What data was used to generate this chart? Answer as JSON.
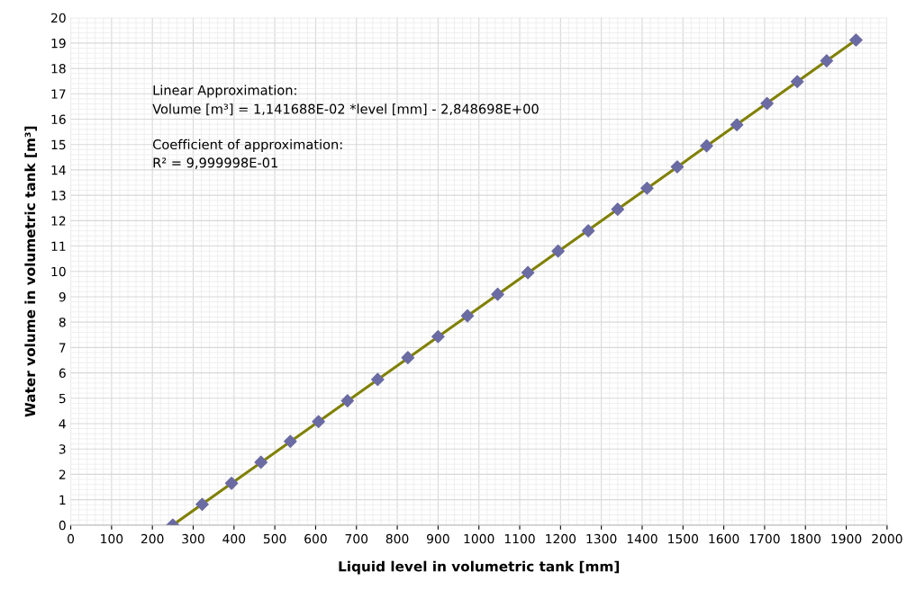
{
  "chart_data": {
    "type": "scatter",
    "xlabel": "Liquid level in volumetric tank [mm]",
    "ylabel": "Water volume in volumetric tank [m³]",
    "annotations": [
      "Linear Approximation:",
      "Volume [m³] = 1,141688E-02 *level [mm] - 2,848698E+00",
      "Coefficient of approximation:",
      "R² = 9,999998E-01"
    ],
    "series": [
      {
        "type": "line",
        "color": "#808000",
        "marker": "none",
        "x": [
          250,
          1924
        ],
        "values": [
          0,
          19.12
        ]
      },
      {
        "color": "#6b6ba3",
        "marker": "diamond",
        "x": [
          250,
          322,
          394,
          466,
          538,
          607,
          678,
          752,
          826,
          900,
          972,
          1046,
          1120,
          1194,
          1268,
          1340,
          1412,
          1486,
          1558,
          1632,
          1706,
          1780,
          1852,
          1924
        ],
        "values": [
          0,
          0.82,
          1.65,
          2.48,
          3.3,
          4.08,
          4.9,
          5.74,
          6.6,
          7.43,
          8.25,
          9.1,
          9.95,
          10.8,
          11.6,
          12.45,
          13.28,
          14.12,
          14.95,
          15.78,
          16.62,
          17.48,
          18.3,
          19.12
        ]
      }
    ],
    "xlim": [
      0,
      2000
    ],
    "xticks": [
      0,
      100,
      200,
      300,
      400,
      500,
      600,
      700,
      800,
      900,
      1000,
      1100,
      1200,
      1300,
      1400,
      1500,
      1600,
      1700,
      1800,
      1900,
      2000
    ],
    "ylim": [
      0,
      20
    ],
    "yticks": [
      0,
      1,
      2,
      3,
      4,
      5,
      6,
      7,
      8,
      9,
      10,
      11,
      12,
      13,
      14,
      15,
      16,
      17,
      18,
      19,
      20
    ],
    "grid": true,
    "legend": false
  }
}
